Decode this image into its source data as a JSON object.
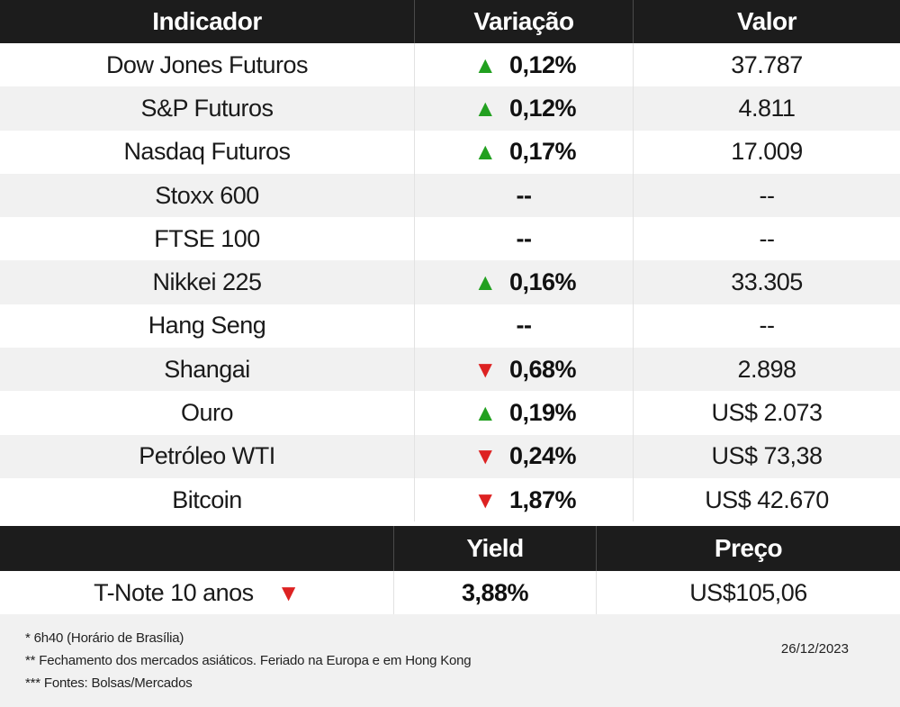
{
  "header": {
    "indicador": "Indicador",
    "variacao": "Variação",
    "valor": "Valor"
  },
  "rows": [
    {
      "name": "Dow Jones Futuros",
      "direction": "up",
      "arrow": "▲",
      "variation": "0,12%",
      "value": "37.787"
    },
    {
      "name": "S&P Futuros",
      "direction": "up",
      "arrow": "▲",
      "variation": "0,12%",
      "value": "4.811"
    },
    {
      "name": "Nasdaq Futuros",
      "direction": "up",
      "arrow": "▲",
      "variation": "0,17%",
      "value": "17.009"
    },
    {
      "name": "Stoxx 600",
      "direction": "none",
      "arrow": "",
      "variation": "--",
      "value": "--"
    },
    {
      "name": "FTSE 100",
      "direction": "none",
      "arrow": "",
      "variation": "--",
      "value": "--"
    },
    {
      "name": "Nikkei 225",
      "direction": "up",
      "arrow": "▲",
      "variation": "0,16%",
      "value": "33.305"
    },
    {
      "name": "Hang Seng",
      "direction": "none",
      "arrow": "",
      "variation": "--",
      "value": "--"
    },
    {
      "name": "Shangai",
      "direction": "down",
      "arrow": "▼",
      "variation": "0,68%",
      "value": "2.898"
    },
    {
      "name": "Ouro",
      "direction": "up",
      "arrow": "▲",
      "variation": "0,19%",
      "value": "US$ 2.073"
    },
    {
      "name": "Petróleo WTI",
      "direction": "down",
      "arrow": "▼",
      "variation": "0,24%",
      "value": "US$ 73,38"
    },
    {
      "name": "Bitcoin",
      "direction": "down",
      "arrow": "▼",
      "variation": "1,87%",
      "value": "US$ 42.670"
    }
  ],
  "bonds": {
    "header": {
      "yield": "Yield",
      "preco": "Preço"
    },
    "row": {
      "name": "T-Note 10 anos",
      "direction": "down",
      "arrow": "▼",
      "yield": "3,88%",
      "price": "US$105,06"
    }
  },
  "footer": {
    "note1": "* 6h40 (Horário de Brasília)",
    "note2": "** Fechamento dos mercados asiáticos. Feriado na Europa e em Hong Kong",
    "note3": "*** Fontes: Bolsas/Mercados",
    "date": "26/12/2023"
  },
  "colors": {
    "up": "#22a020",
    "down": "#dd2222",
    "header_bg": "#1c1c1c",
    "alt_row": "#f1f1f1"
  }
}
